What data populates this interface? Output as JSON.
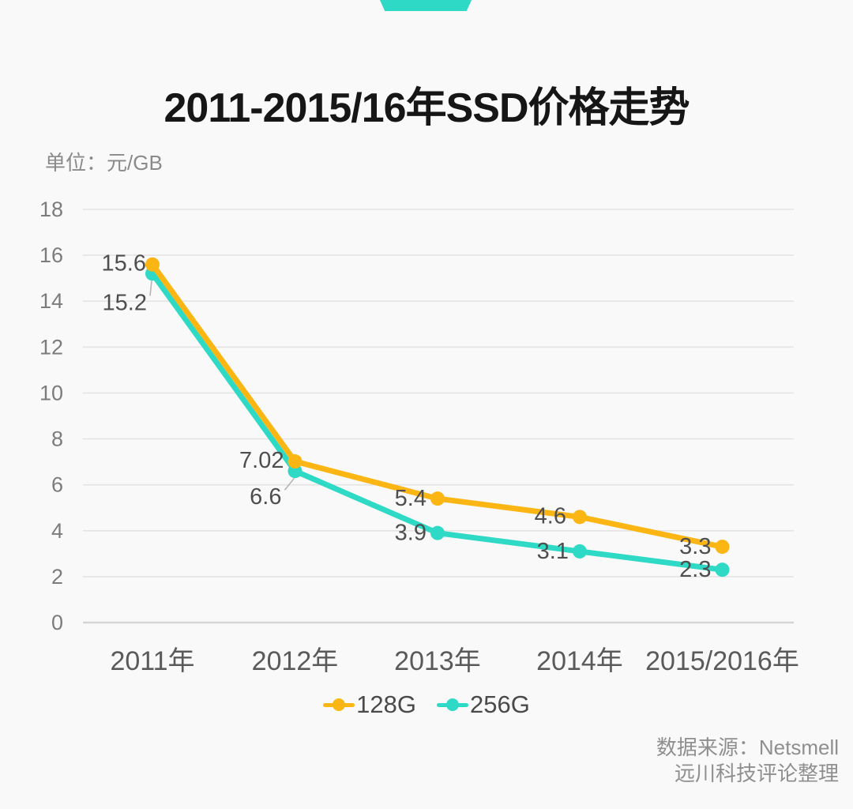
{
  "chart_data": {
    "type": "line",
    "title": "2011-2015/16年SSD价格走势",
    "unit_label": "单位：元/GB",
    "categories": [
      "2011年",
      "2012年",
      "2013年",
      "2014年",
      "2015/2016年"
    ],
    "series": [
      {
        "name": "128G",
        "color": "#fbb614",
        "values": [
          15.6,
          7.02,
          5.4,
          4.6,
          3.3
        ]
      },
      {
        "name": "256G",
        "color": "#2ed9c6",
        "values": [
          15.2,
          6.6,
          3.9,
          3.1,
          2.3
        ]
      }
    ],
    "xlabel": "",
    "ylabel": "元/GB",
    "ylim": [
      0,
      18
    ],
    "ytick_step": 2,
    "grid": true,
    "data_labels": true,
    "legend_position": "bottom"
  },
  "source": {
    "line1": "数据来源：Netsmell",
    "line2": "远川科技评论整理"
  },
  "colors": {
    "background": "#f9f9f9",
    "accent_ribbon": "#2ed9c6",
    "title_text": "#161616",
    "unit_text": "#8a8a8a",
    "axis_tick_text": "#7c7c7c",
    "x_label_text": "#5a5a5a",
    "data_label_text": "#4e4e4e",
    "legend_text": "#4a4a4a",
    "source_text": "#8f8f8f",
    "grid_line": "#e4e4e4",
    "baseline": "#d5d5d5",
    "leader_line": "#b5b5b5"
  }
}
